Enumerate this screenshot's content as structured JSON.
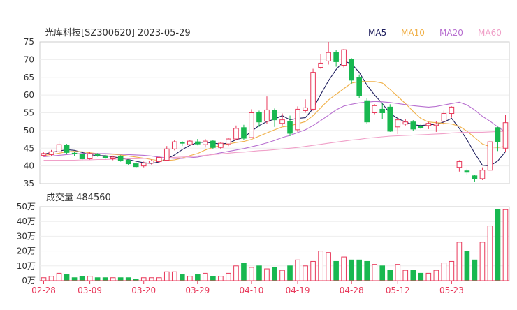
{
  "header": {
    "stock_title": "光库科技[SZ300620] 2023-05-29",
    "legend": [
      {
        "label": "MA5",
        "color": "#1f1f5e"
      },
      {
        "label": "MA10",
        "color": "#f0b048"
      },
      {
        "label": "MA20",
        "color": "#b870d0"
      },
      {
        "label": "MA60",
        "color": "#f0a0c8"
      }
    ]
  },
  "volume_header": {
    "label": "成交量 484560"
  },
  "colors": {
    "up": "#e8385a",
    "down": "#18b850"
  },
  "chart_data": [
    {
      "type": "candlestick",
      "title": "光库科技[SZ300620] 2023-05-29",
      "ylim": [
        35,
        75
      ],
      "y_ticks": [
        "35",
        "40",
        "45",
        "50",
        "55",
        "60",
        "65",
        "70",
        "75"
      ],
      "x_tick_labels": [
        "02-28",
        "03-09",
        "03-20",
        "03-29",
        "04-10",
        "04-19",
        "04-28",
        "05-12",
        "05-23"
      ],
      "x_tick_index": [
        0,
        6,
        13,
        20,
        27,
        33,
        40,
        46,
        53
      ],
      "series_order": [
        "open",
        "close",
        "high",
        "low"
      ],
      "candles": [
        [
          43.0,
          43.5,
          43.8,
          42.6
        ],
        [
          43.2,
          44.0,
          44.5,
          42.9
        ],
        [
          44.0,
          46.0,
          47.0,
          43.6
        ],
        [
          45.8,
          43.8,
          46.2,
          43.4
        ],
        [
          43.6,
          43.4,
          44.0,
          42.8
        ],
        [
          43.2,
          42.0,
          43.6,
          41.6
        ],
        [
          42.0,
          43.5,
          43.9,
          41.8
        ],
        [
          43.2,
          43.0,
          43.6,
          42.6
        ],
        [
          42.8,
          42.2,
          43.2,
          41.8
        ],
        [
          42.0,
          42.5,
          42.9,
          41.6
        ],
        [
          42.6,
          41.5,
          43.0,
          41.2
        ],
        [
          41.6,
          40.6,
          41.9,
          40.2
        ],
        [
          40.6,
          39.8,
          41.0,
          39.5
        ],
        [
          40.0,
          40.8,
          41.2,
          39.6
        ],
        [
          40.8,
          41.4,
          41.8,
          40.4
        ],
        [
          41.2,
          42.4,
          42.8,
          40.8
        ],
        [
          41.6,
          44.8,
          45.6,
          41.4
        ],
        [
          44.8,
          46.8,
          47.4,
          44.4
        ],
        [
          46.6,
          46.4,
          47.0,
          45.6
        ],
        [
          46.0,
          47.0,
          47.4,
          45.8
        ],
        [
          46.8,
          46.2,
          47.6,
          45.8
        ],
        [
          46.0,
          47.0,
          47.6,
          45.2
        ],
        [
          47.0,
          45.2,
          47.4,
          44.8
        ],
        [
          45.2,
          46.4,
          46.8,
          44.8
        ],
        [
          46.2,
          47.6,
          48.0,
          45.6
        ],
        [
          47.6,
          50.6,
          51.4,
          47.2
        ],
        [
          50.8,
          47.8,
          51.6,
          47.4
        ],
        [
          48.0,
          55.0,
          56.0,
          47.8
        ],
        [
          55.0,
          52.4,
          55.6,
          51.0
        ],
        [
          52.6,
          55.8,
          59.6,
          51.8
        ],
        [
          55.6,
          53.0,
          56.2,
          51.0
        ],
        [
          52.0,
          53.0,
          54.8,
          51.4
        ],
        [
          52.6,
          49.2,
          54.2,
          48.4
        ],
        [
          50.2,
          56.0,
          56.8,
          49.6
        ],
        [
          55.6,
          56.4,
          58.8,
          55.0
        ],
        [
          56.0,
          66.4,
          67.4,
          55.6
        ],
        [
          67.8,
          69.0,
          71.6,
          67.4
        ],
        [
          69.6,
          72.0,
          75.0,
          68.6
        ],
        [
          72.0,
          69.4,
          72.8,
          68.0
        ],
        [
          68.4,
          72.8,
          73.0,
          67.8
        ],
        [
          70.0,
          64.2,
          70.4,
          63.2
        ],
        [
          65.0,
          59.8,
          65.8,
          59.2
        ],
        [
          58.4,
          52.4,
          59.2,
          51.8
        ],
        [
          55.0,
          57.0,
          57.4,
          54.6
        ],
        [
          56.0,
          55.0,
          57.6,
          53.2
        ],
        [
          56.6,
          49.8,
          57.4,
          49.6
        ],
        [
          51.0,
          53.0,
          53.6,
          49.0
        ],
        [
          51.8,
          52.4,
          53.2,
          51.4
        ],
        [
          52.4,
          50.4,
          52.9,
          49.8
        ],
        [
          51.2,
          50.8,
          51.8,
          50.4
        ],
        [
          51.4,
          52.0,
          52.4,
          50.4
        ],
        [
          51.4,
          51.8,
          52.6,
          49.6
        ],
        [
          52.6,
          54.8,
          55.6,
          51.6
        ],
        [
          54.8,
          56.6,
          56.8,
          53.6
        ],
        [
          39.6,
          41.2,
          41.6,
          38.4
        ],
        [
          38.6,
          38.2,
          39.2,
          37.6
        ],
        [
          37.2,
          36.4,
          37.4,
          35.6
        ],
        [
          36.4,
          38.8,
          39.6,
          36.0
        ],
        [
          38.8,
          46.8,
          47.4,
          38.6
        ],
        [
          50.8,
          46.8,
          51.0,
          44.2
        ],
        [
          45.0,
          52.2,
          54.4,
          44.0
        ]
      ],
      "ma_order": [
        "MA5",
        "MA10",
        "MA20",
        "MA60"
      ],
      "ma": {
        "MA5": [
          43.3,
          43.8,
          44.2,
          44.6,
          44.4,
          43.8,
          43.2,
          42.9,
          42.9,
          42.6,
          42.2,
          41.8,
          41.3,
          40.9,
          40.7,
          41.1,
          42.0,
          43.1,
          44.6,
          45.8,
          46.6,
          46.7,
          46.4,
          46.2,
          46.4,
          47.4,
          48.0,
          49.8,
          51.4,
          52.5,
          53.2,
          54.2,
          53.0,
          53.4,
          53.6,
          56.2,
          60.2,
          64.0,
          67.2,
          69.6,
          68.8,
          66.4,
          62.8,
          60.0,
          57.6,
          54.8,
          53.4,
          52.4,
          51.6,
          51.4,
          51.6,
          51.7,
          52.4,
          53.4,
          50.6,
          47.4,
          43.6,
          40.2,
          40.0,
          41.4,
          44.0
        ],
        "MA10": [
          43.0,
          43.2,
          43.6,
          44.0,
          44.1,
          44.0,
          43.7,
          43.5,
          43.4,
          43.3,
          43.1,
          42.8,
          42.5,
          42.2,
          41.8,
          41.5,
          41.5,
          41.7,
          42.2,
          42.9,
          43.5,
          44.5,
          45.2,
          45.8,
          46.2,
          46.6,
          46.9,
          47.5,
          48.4,
          49.3,
          50.2,
          51.0,
          51.3,
          51.9,
          52.5,
          54.2,
          56.4,
          58.6,
          60.2,
          61.8,
          63.4,
          63.8,
          63.8,
          63.8,
          63.4,
          61.6,
          59.6,
          57.6,
          55.4,
          53.4,
          52.4,
          52.2,
          52.0,
          51.8,
          51.2,
          49.8,
          48.0,
          46.2,
          45.4,
          45.2,
          45.5
        ],
        "MA20": [
          42.6,
          42.8,
          43.0,
          43.2,
          43.4,
          43.5,
          43.5,
          43.5,
          43.5,
          43.4,
          43.3,
          43.2,
          43.1,
          43.0,
          42.8,
          42.5,
          42.3,
          42.1,
          42.1,
          42.3,
          42.5,
          42.9,
          43.3,
          43.7,
          44.1,
          44.5,
          44.9,
          45.4,
          45.9,
          46.5,
          47.2,
          48.0,
          48.6,
          49.4,
          50.2,
          51.4,
          52.8,
          54.3,
          55.8,
          56.9,
          57.4,
          57.8,
          58.0,
          58.2,
          58.1,
          57.9,
          57.6,
          57.3,
          57.0,
          56.8,
          56.6,
          56.8,
          57.2,
          57.6,
          58.0,
          57.2,
          55.8,
          54.0,
          52.6,
          51.0,
          49.6
        ],
        "MA60": [
          41.6,
          41.6,
          41.6,
          41.6,
          41.6,
          41.7,
          41.7,
          41.8,
          41.8,
          41.9,
          41.9,
          42.0,
          42.0,
          42.1,
          42.2,
          42.2,
          42.3,
          42.4,
          42.5,
          42.6,
          42.8,
          43.0,
          43.2,
          43.4,
          43.6,
          43.8,
          43.9,
          44.1,
          44.3,
          44.4,
          44.6,
          44.8,
          45.0,
          45.2,
          45.5,
          45.8,
          46.1,
          46.4,
          46.7,
          47.0,
          47.3,
          47.5,
          47.8,
          48.0,
          48.2,
          48.4,
          48.5,
          48.6,
          48.7,
          48.8,
          48.9,
          49.0,
          49.1,
          49.3,
          49.4,
          49.5,
          49.5,
          49.5,
          49.6,
          49.7,
          49.8
        ]
      }
    },
    {
      "type": "bar",
      "title": "成交量 484560",
      "ylim": [
        0,
        50
      ],
      "y_ticks": [
        "0万",
        "10万",
        "20万",
        "30万",
        "40万",
        "50万"
      ],
      "unit": "万",
      "values": [
        2,
        3,
        5,
        4,
        2,
        3,
        3,
        2,
        2,
        2,
        2,
        2,
        1,
        2,
        2,
        2,
        6,
        6,
        4,
        3,
        4,
        5,
        3,
        3,
        5,
        10,
        12,
        9,
        10,
        8,
        9,
        7,
        10,
        14,
        10,
        13,
        20,
        19,
        13,
        16,
        14,
        14,
        13,
        11,
        10,
        7,
        11,
        7,
        7,
        5,
        5,
        7,
        12,
        13,
        26,
        20,
        14,
        26,
        37,
        48,
        48
      ]
    }
  ]
}
